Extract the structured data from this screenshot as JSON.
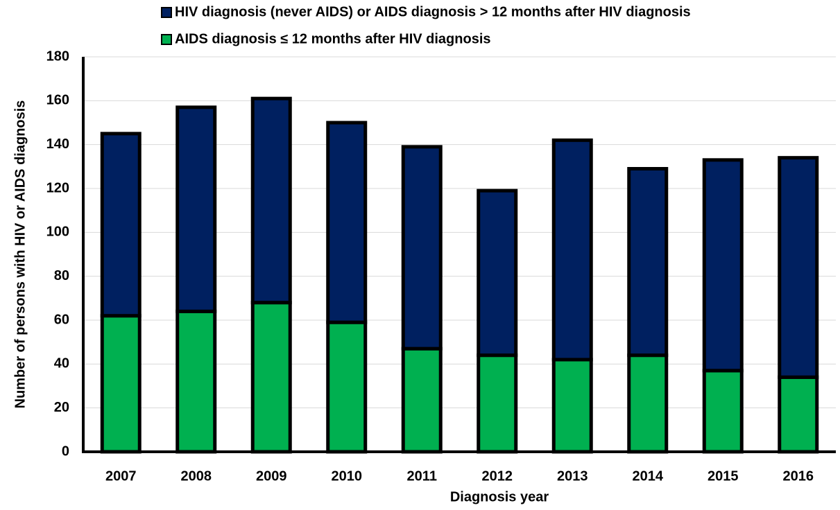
{
  "chart_data": {
    "type": "stacked-bar",
    "x_label": "Diagnosis year",
    "y_label": "Number of persons with HIV or AIDS diagnosis",
    "categories": [
      "2007",
      "2008",
      "2009",
      "2010",
      "2011",
      "2012",
      "2013",
      "2014",
      "2015",
      "2016"
    ],
    "series": [
      {
        "name": "HIV diagnosis (never AIDS) or AIDS diagnosis > 12 months after HIV diagnosis",
        "color": "#002060",
        "values": [
          83,
          93,
          93,
          91,
          92,
          75,
          100,
          85,
          96,
          100
        ]
      },
      {
        "name": "AIDS diagnosis ≤ 12 months after HIV diagnosis",
        "color": "#00b050",
        "values": [
          62,
          64,
          68,
          59,
          47,
          44,
          42,
          44,
          37,
          34
        ]
      }
    ],
    "ylim": [
      0,
      180
    ],
    "yticks": [
      0,
      20,
      40,
      60,
      80,
      100,
      120,
      140,
      160,
      180
    ],
    "grid": true
  }
}
